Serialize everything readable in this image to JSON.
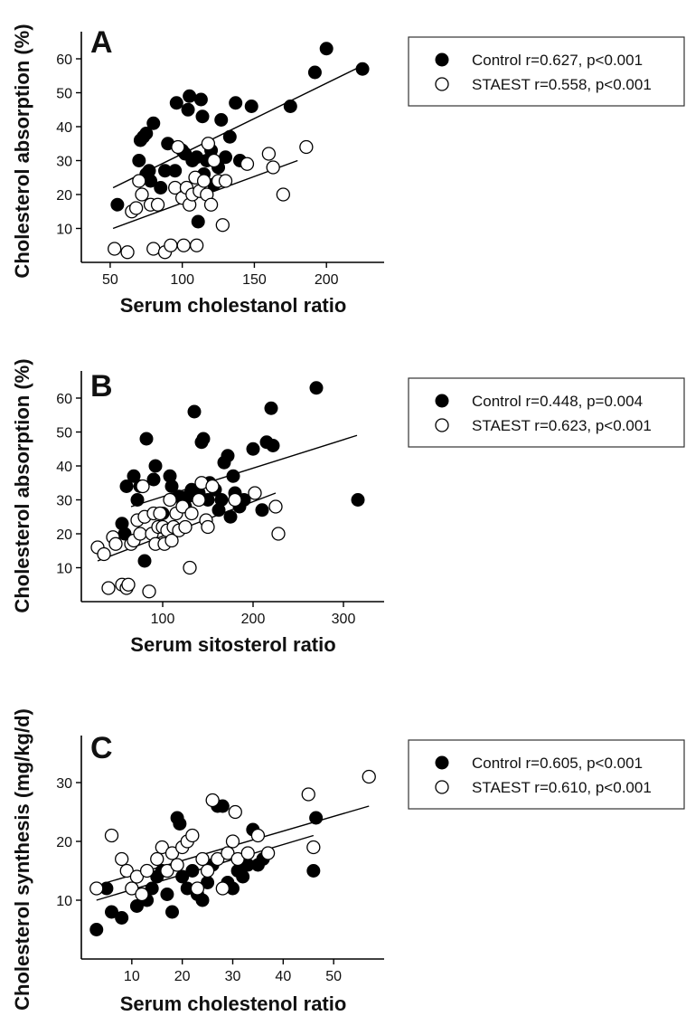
{
  "chart_data": [
    {
      "type": "scatter",
      "panel_label": "A",
      "xlabel": "Serum cholestanol ratio",
      "ylabel": "Cholesterol absorption (%)",
      "xlim": [
        30,
        240
      ],
      "ylim": [
        0,
        68
      ],
      "xticks": [
        50,
        100,
        150,
        200
      ],
      "yticks": [
        10,
        20,
        30,
        40,
        50,
        60
      ],
      "legend_position": "right",
      "series": [
        {
          "name": "Control r=0.627, p<0.001",
          "marker": "filled-circle",
          "color": "#000000",
          "points": [
            [
              55,
              17
            ],
            [
              70,
              30
            ],
            [
              71,
              36
            ],
            [
              73,
              37
            ],
            [
              75,
              38
            ],
            [
              75,
              26
            ],
            [
              77,
              27
            ],
            [
              78,
              24
            ],
            [
              80,
              41
            ],
            [
              85,
              22
            ],
            [
              88,
              27
            ],
            [
              90,
              35
            ],
            [
              95,
              27
            ],
            [
              96,
              47
            ],
            [
              100,
              33
            ],
            [
              102,
              32
            ],
            [
              104,
              45
            ],
            [
              105,
              49
            ],
            [
              107,
              30
            ],
            [
              110,
              31
            ],
            [
              111,
              12
            ],
            [
              113,
              48
            ],
            [
              114,
              43
            ],
            [
              115,
              26
            ],
            [
              117,
              30
            ],
            [
              120,
              33
            ],
            [
              122,
              23
            ],
            [
              125,
              28
            ],
            [
              127,
              42
            ],
            [
              130,
              31
            ],
            [
              133,
              37
            ],
            [
              137,
              47
            ],
            [
              140,
              30
            ],
            [
              148,
              46
            ],
            [
              175,
              46
            ],
            [
              192,
              56
            ],
            [
              200,
              63
            ],
            [
              225,
              57
            ]
          ],
          "trend": [
            [
              52,
              22
            ],
            [
              225,
              58
            ]
          ]
        },
        {
          "name": "STAEST r=0.558, p<0.001",
          "marker": "open-circle",
          "color": "#000000",
          "points": [
            [
              53,
              4
            ],
            [
              62,
              3
            ],
            [
              65,
              15
            ],
            [
              68,
              16
            ],
            [
              70,
              24
            ],
            [
              72,
              20
            ],
            [
              78,
              17
            ],
            [
              80,
              4
            ],
            [
              83,
              17
            ],
            [
              88,
              3
            ],
            [
              92,
              5
            ],
            [
              95,
              22
            ],
            [
              97,
              34
            ],
            [
              100,
              19
            ],
            [
              101,
              5
            ],
            [
              103,
              22
            ],
            [
              105,
              17
            ],
            [
              107,
              20
            ],
            [
              109,
              25
            ],
            [
              110,
              5
            ],
            [
              112,
              21
            ],
            [
              115,
              24
            ],
            [
              117,
              20
            ],
            [
              118,
              35
            ],
            [
              120,
              17
            ],
            [
              122,
              30
            ],
            [
              125,
              24
            ],
            [
              128,
              11
            ],
            [
              130,
              24
            ],
            [
              145,
              29
            ],
            [
              160,
              32
            ],
            [
              163,
              28
            ],
            [
              170,
              20
            ],
            [
              186,
              34
            ]
          ],
          "trend": [
            [
              52,
              10
            ],
            [
              180,
              30
            ]
          ]
        }
      ]
    },
    {
      "type": "scatter",
      "panel_label": "B",
      "xlabel": "Serum sitosterol ratio",
      "ylabel": "Cholesterol absorption (%)",
      "xlim": [
        10,
        345
      ],
      "ylim": [
        0,
        68
      ],
      "xticks": [
        100,
        200,
        300
      ],
      "yticks": [
        10,
        20,
        30,
        40,
        50,
        60
      ],
      "legend_position": "right",
      "series": [
        {
          "name": "Control r=0.448, p=0.004",
          "marker": "filled-circle",
          "color": "#000000",
          "points": [
            [
              55,
              23
            ],
            [
              58,
              20
            ],
            [
              60,
              34
            ],
            [
              68,
              37
            ],
            [
              72,
              30
            ],
            [
              75,
              34
            ],
            [
              80,
              12
            ],
            [
              82,
              48
            ],
            [
              90,
              36
            ],
            [
              92,
              40
            ],
            [
              100,
              26
            ],
            [
              108,
              37
            ],
            [
              110,
              34
            ],
            [
              118,
              31
            ],
            [
              125,
              28
            ],
            [
              128,
              31
            ],
            [
              132,
              33
            ],
            [
              135,
              56
            ],
            [
              140,
              32
            ],
            [
              143,
              47
            ],
            [
              145,
              48
            ],
            [
              150,
              30
            ],
            [
              152,
              35
            ],
            [
              158,
              33
            ],
            [
              162,
              27
            ],
            [
              165,
              30
            ],
            [
              168,
              41
            ],
            [
              172,
              43
            ],
            [
              175,
              25
            ],
            [
              178,
              37
            ],
            [
              180,
              32
            ],
            [
              185,
              28
            ],
            [
              190,
              30
            ],
            [
              200,
              45
            ],
            [
              210,
              27
            ],
            [
              215,
              47
            ],
            [
              220,
              57
            ],
            [
              222,
              46
            ],
            [
              270,
              63
            ],
            [
              316,
              30
            ]
          ],
          "trend": [
            [
              65,
              28
            ],
            [
              315,
              49
            ]
          ]
        },
        {
          "name": "STAEST r=0.623, p<0.001",
          "marker": "open-circle",
          "color": "#000000",
          "points": [
            [
              28,
              16
            ],
            [
              35,
              14
            ],
            [
              40,
              4
            ],
            [
              45,
              19
            ],
            [
              48,
              17
            ],
            [
              55,
              5
            ],
            [
              60,
              4
            ],
            [
              62,
              5
            ],
            [
              65,
              17
            ],
            [
              68,
              18
            ],
            [
              72,
              24
            ],
            [
              75,
              20
            ],
            [
              78,
              34
            ],
            [
              80,
              25
            ],
            [
              85,
              3
            ],
            [
              88,
              20
            ],
            [
              90,
              26
            ],
            [
              92,
              17
            ],
            [
              95,
              22
            ],
            [
              97,
              26
            ],
            [
              100,
              22
            ],
            [
              102,
              17
            ],
            [
              105,
              21
            ],
            [
              108,
              30
            ],
            [
              110,
              18
            ],
            [
              112,
              22
            ],
            [
              115,
              26
            ],
            [
              118,
              21
            ],
            [
              122,
              28
            ],
            [
              125,
              22
            ],
            [
              130,
              10
            ],
            [
              132,
              26
            ],
            [
              140,
              30
            ],
            [
              143,
              35
            ],
            [
              148,
              24
            ],
            [
              150,
              22
            ],
            [
              155,
              34
            ],
            [
              180,
              30
            ],
            [
              202,
              32
            ],
            [
              225,
              28
            ],
            [
              228,
              20
            ]
          ],
          "trend": [
            [
              28,
              12
            ],
            [
              225,
              32
            ]
          ]
        }
      ]
    },
    {
      "type": "scatter",
      "panel_label": "C",
      "xlabel": "Serum cholestenol ratio",
      "ylabel": "Cholesterol synthesis (mg/kg/d)",
      "xlim": [
        0,
        60
      ],
      "ylim": [
        0,
        38
      ],
      "xticks": [
        10,
        20,
        30,
        40,
        50
      ],
      "yticks": [
        10,
        20,
        30
      ],
      "legend_position": "right",
      "series": [
        {
          "name": "Control r=0.605, p<0.001",
          "marker": "filled-circle",
          "color": "#000000",
          "points": [
            [
              3,
              5
            ],
            [
              5,
              12
            ],
            [
              6,
              8
            ],
            [
              8,
              7
            ],
            [
              10,
              12
            ],
            [
              11,
              9
            ],
            [
              12,
              11
            ],
            [
              13,
              10
            ],
            [
              14,
              12
            ],
            [
              15,
              14
            ],
            [
              16,
              15
            ],
            [
              17,
              11
            ],
            [
              18,
              8
            ],
            [
              19,
              24
            ],
            [
              19.5,
              23
            ],
            [
              20,
              14
            ],
            [
              21,
              12
            ],
            [
              22,
              15
            ],
            [
              23,
              11
            ],
            [
              24,
              10
            ],
            [
              25,
              13
            ],
            [
              26,
              16
            ],
            [
              27,
              26
            ],
            [
              28,
              26
            ],
            [
              29,
              13
            ],
            [
              30,
              12
            ],
            [
              31,
              15
            ],
            [
              32,
              14
            ],
            [
              33,
              16
            ],
            [
              34,
              22
            ],
            [
              35,
              16
            ],
            [
              36,
              17
            ],
            [
              46,
              15
            ],
            [
              46.5,
              24
            ]
          ],
          "trend": [
            [
              3,
              10
            ],
            [
              46,
              21
            ]
          ]
        },
        {
          "name": "STAEST r=0.610, p<0.001",
          "marker": "open-circle",
          "color": "#000000",
          "points": [
            [
              3,
              12
            ],
            [
              6,
              21
            ],
            [
              8,
              17
            ],
            [
              9,
              15
            ],
            [
              10,
              12
            ],
            [
              11,
              14
            ],
            [
              12,
              11
            ],
            [
              13,
              15
            ],
            [
              15,
              17
            ],
            [
              16,
              19
            ],
            [
              17,
              15
            ],
            [
              18,
              18
            ],
            [
              19,
              16
            ],
            [
              20,
              19
            ],
            [
              21,
              20
            ],
            [
              22,
              21
            ],
            [
              23,
              12
            ],
            [
              24,
              17
            ],
            [
              25,
              15
            ],
            [
              26,
              27
            ],
            [
              27,
              17
            ],
            [
              28,
              12
            ],
            [
              29,
              18
            ],
            [
              30,
              20
            ],
            [
              30.5,
              25
            ],
            [
              31,
              17
            ],
            [
              33,
              18
            ],
            [
              35,
              21
            ],
            [
              37,
              18
            ],
            [
              45,
              28
            ],
            [
              46,
              19
            ],
            [
              57,
              31
            ]
          ],
          "trend": [
            [
              5,
              13
            ],
            [
              57,
              26
            ]
          ]
        }
      ]
    }
  ]
}
